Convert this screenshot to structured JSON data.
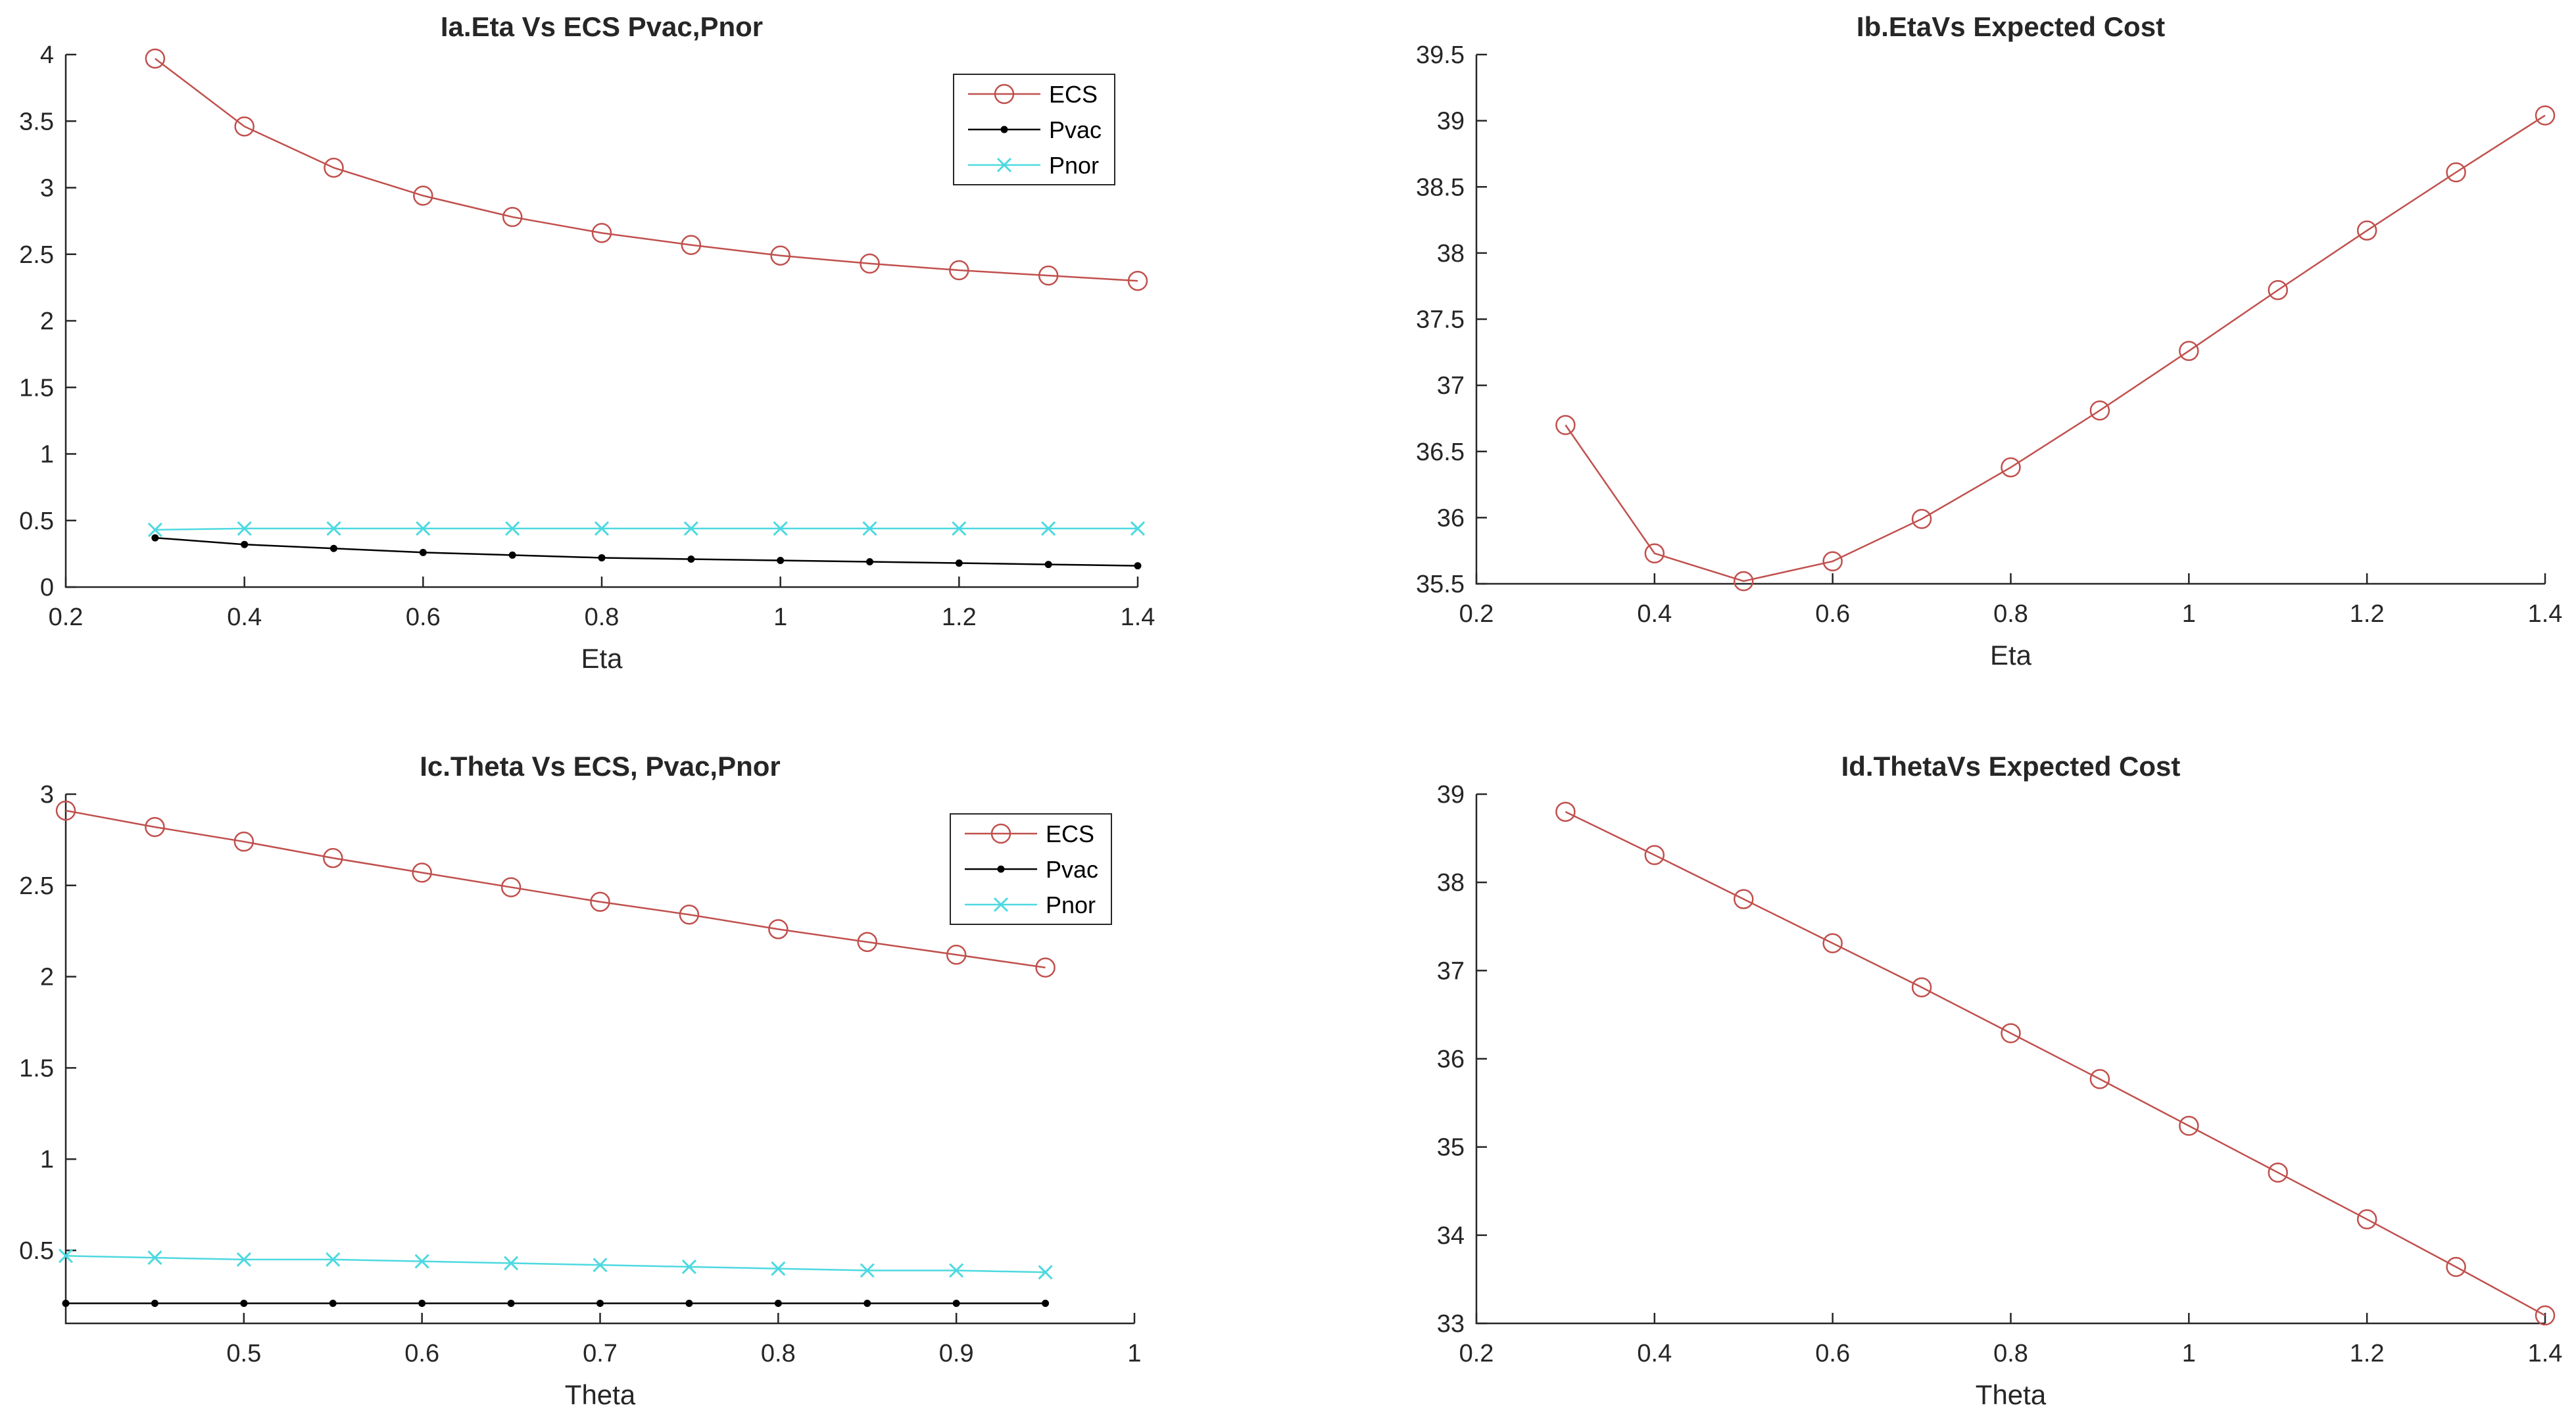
{
  "chart_data": [
    {
      "type": "line",
      "title": "Ia.Eta Vs ECS Pvac,Pnor",
      "xlabel": "Eta",
      "ylabel": "",
      "xlim": [
        0.2,
        1.4
      ],
      "ylim": [
        0,
        4
      ],
      "xticks": [
        0.2,
        0.4,
        0.6,
        0.8,
        1,
        1.2,
        1.4
      ],
      "xtick_labels": [
        "0.2",
        "0.4",
        "0.6",
        "0.8",
        "1",
        "1.2",
        "1.4"
      ],
      "yticks": [
        0,
        0.5,
        1,
        1.5,
        2,
        2.5,
        3,
        3.5,
        4
      ],
      "ytick_labels": [
        "0",
        "0.5",
        "1",
        "1.5",
        "2",
        "2.5",
        "3",
        "3.5",
        "4"
      ],
      "legend": "top-right",
      "x": [
        0.3,
        0.4,
        0.5,
        0.6,
        0.7,
        0.8,
        0.9,
        1.0,
        1.1,
        1.2,
        1.3,
        1.4
      ],
      "series": [
        {
          "name": "ECS",
          "color": "#c0504d",
          "marker": "circle",
          "values": [
            3.97,
            3.46,
            3.15,
            2.94,
            2.78,
            2.66,
            2.57,
            2.49,
            2.43,
            2.38,
            2.34,
            2.3
          ]
        },
        {
          "name": "Pvac",
          "color": "#000000",
          "marker": "dot",
          "values": [
            0.37,
            0.32,
            0.29,
            0.26,
            0.24,
            0.22,
            0.21,
            0.2,
            0.19,
            0.18,
            0.17,
            0.16
          ]
        },
        {
          "name": "Pnor",
          "color": "#4dd9e0",
          "marker": "x",
          "values": [
            0.43,
            0.44,
            0.44,
            0.44,
            0.44,
            0.44,
            0.44,
            0.44,
            0.44,
            0.44,
            0.44,
            0.44
          ]
        }
      ]
    },
    {
      "type": "line",
      "title": "Ib.EtaVs Expected Cost",
      "xlabel": "Eta",
      "ylabel": "",
      "xlim": [
        0.2,
        1.4
      ],
      "ylim": [
        35.5,
        39.5
      ],
      "xticks": [
        0.2,
        0.4,
        0.6,
        0.8,
        1,
        1.2,
        1.4
      ],
      "xtick_labels": [
        "0.2",
        "0.4",
        "0.6",
        "0.8",
        "1",
        "1.2",
        "1.4"
      ],
      "yticks": [
        35.5,
        36,
        36.5,
        37,
        37.5,
        38,
        38.5,
        39,
        39.5
      ],
      "ytick_labels": [
        "35.5",
        "36",
        "36.5",
        "37",
        "37.5",
        "38",
        "38.5",
        "39",
        "39.5"
      ],
      "legend": "",
      "x": [
        0.3,
        0.4,
        0.5,
        0.6,
        0.7,
        0.8,
        0.9,
        1.0,
        1.1,
        1.2,
        1.3,
        1.4
      ],
      "series": [
        {
          "name": "Expected Cost",
          "color": "#c0504d",
          "marker": "circle",
          "values": [
            36.7,
            35.73,
            35.52,
            35.67,
            35.99,
            36.38,
            36.81,
            37.26,
            37.72,
            38.17,
            38.61,
            39.04
          ]
        }
      ]
    },
    {
      "type": "line",
      "title": "Ic.Theta Vs ECS, Pvac,Pnor",
      "xlabel": "Theta",
      "ylabel": "",
      "xlim": [
        0.4,
        1.0
      ],
      "ylim": [
        0.1,
        3.0
      ],
      "xticks": [
        0.5,
        0.6,
        0.7,
        0.8,
        0.9,
        1
      ],
      "xtick_labels": [
        "0.5",
        "0.6",
        "0.7",
        "0.8",
        "0.9",
        "1"
      ],
      "yticks": [
        0.5,
        1,
        1.5,
        2,
        2.5,
        3
      ],
      "ytick_labels": [
        "0.5",
        "1",
        "1.5",
        "2",
        "2.5",
        "3"
      ],
      "legend": "top-right",
      "x": [
        0.4,
        0.45,
        0.5,
        0.55,
        0.6,
        0.65,
        0.7,
        0.75,
        0.8,
        0.85,
        0.9,
        0.95
      ],
      "series": [
        {
          "name": "ECS",
          "color": "#c0504d",
          "marker": "circle",
          "values": [
            2.91,
            2.82,
            2.74,
            2.65,
            2.57,
            2.49,
            2.41,
            2.34,
            2.26,
            2.19,
            2.12,
            2.05
          ]
        },
        {
          "name": "Pvac",
          "color": "#000000",
          "marker": "dot",
          "values": [
            0.21,
            0.21,
            0.21,
            0.21,
            0.21,
            0.21,
            0.21,
            0.21,
            0.21,
            0.21,
            0.21,
            0.21
          ]
        },
        {
          "name": "Pnor",
          "color": "#4dd9e0",
          "marker": "x",
          "values": [
            0.47,
            0.46,
            0.45,
            0.45,
            0.44,
            0.43,
            0.42,
            0.41,
            0.4,
            0.39,
            0.39,
            0.38
          ]
        }
      ]
    },
    {
      "type": "line",
      "title": "Id.ThetaVs Expected Cost",
      "xlabel": "Theta",
      "ylabel": "",
      "xlim": [
        0.2,
        1.4
      ],
      "ylim": [
        33,
        39
      ],
      "xticks": [
        0.2,
        0.4,
        0.6,
        0.8,
        1,
        1.2,
        1.4
      ],
      "xtick_labels": [
        "0.2",
        "0.4",
        "0.6",
        "0.8",
        "1",
        "1.2",
        "1.4"
      ],
      "yticks": [
        33,
        34,
        35,
        36,
        37,
        38,
        39
      ],
      "ytick_labels": [
        "33",
        "34",
        "35",
        "36",
        "37",
        "38",
        "39"
      ],
      "legend": "",
      "x": [
        0.3,
        0.4,
        0.5,
        0.6,
        0.7,
        0.8,
        0.9,
        1.0,
        1.1,
        1.2,
        1.3,
        1.4
      ],
      "series": [
        {
          "name": "Expected Cost",
          "color": "#c0504d",
          "marker": "circle",
          "values": [
            38.8,
            38.31,
            37.81,
            37.31,
            36.81,
            36.29,
            35.77,
            35.24,
            34.71,
            34.18,
            33.64,
            33.09
          ]
        }
      ]
    }
  ]
}
